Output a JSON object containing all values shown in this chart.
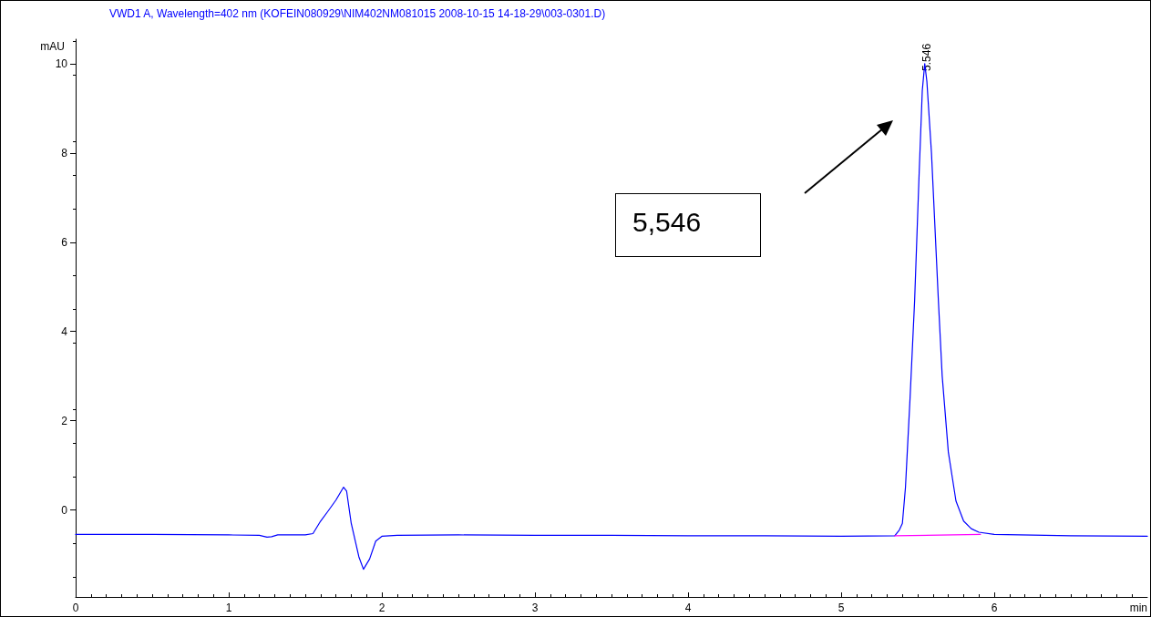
{
  "chart_data": {
    "type": "line",
    "title": "VWD1 A, Wavelength=402 nm (KOFEIN080929\\NIM402NM081015 2008-10-15 14-18-29\\003-0301.D)",
    "xlabel": "min",
    "ylabel": "mAU",
    "xlim": [
      0,
      7
    ],
    "xticks": [
      0,
      1,
      2,
      3,
      4,
      5,
      6
    ],
    "ylim": [
      -1.95,
      10.55
    ],
    "yticks": [
      0,
      2,
      4,
      6,
      8,
      10
    ],
    "marker": "none",
    "line_style": "solid",
    "series": [
      {
        "color": "#0000ff",
        "x": [
          0,
          0.5,
          1.0,
          1.2,
          1.25,
          1.28,
          1.32,
          1.5,
          1.55,
          1.6,
          1.65,
          1.7,
          1.75,
          1.77,
          1.8,
          1.85,
          1.88,
          1.92,
          1.96,
          2.0,
          2.1,
          2.5,
          3.0,
          3.5,
          4.0,
          4.5,
          5.0,
          5.35,
          5.38,
          5.4,
          5.42,
          5.45,
          5.48,
          5.51,
          5.53,
          5.546,
          5.56,
          5.59,
          5.62,
          5.635,
          5.66,
          5.7,
          5.75,
          5.8,
          5.85,
          5.9,
          6.0,
          6.5,
          7.0
        ],
        "values": [
          -0.55,
          -0.55,
          -0.56,
          -0.57,
          -0.61,
          -0.6,
          -0.56,
          -0.56,
          -0.53,
          -0.25,
          -0.02,
          0.22,
          0.51,
          0.42,
          -0.3,
          -1.05,
          -1.33,
          -1.1,
          -0.7,
          -0.59,
          -0.57,
          -0.56,
          -0.57,
          -0.57,
          -0.58,
          -0.58,
          -0.59,
          -0.58,
          -0.45,
          -0.3,
          0.5,
          2.5,
          4.7,
          7.6,
          9.4,
          10.0,
          9.6,
          8.0,
          5.8,
          4.7,
          3.0,
          1.3,
          0.2,
          -0.25,
          -0.42,
          -0.5,
          -0.55,
          -0.58,
          -0.59
        ]
      },
      {
        "color": "#ff00ff",
        "x": [
          5.35,
          5.91
        ],
        "values": [
          -0.58,
          -0.55
        ]
      }
    ],
    "annotations": [
      {
        "text": "5.546",
        "x": 5.546,
        "y": 10.0
      },
      "5,546"
    ]
  }
}
